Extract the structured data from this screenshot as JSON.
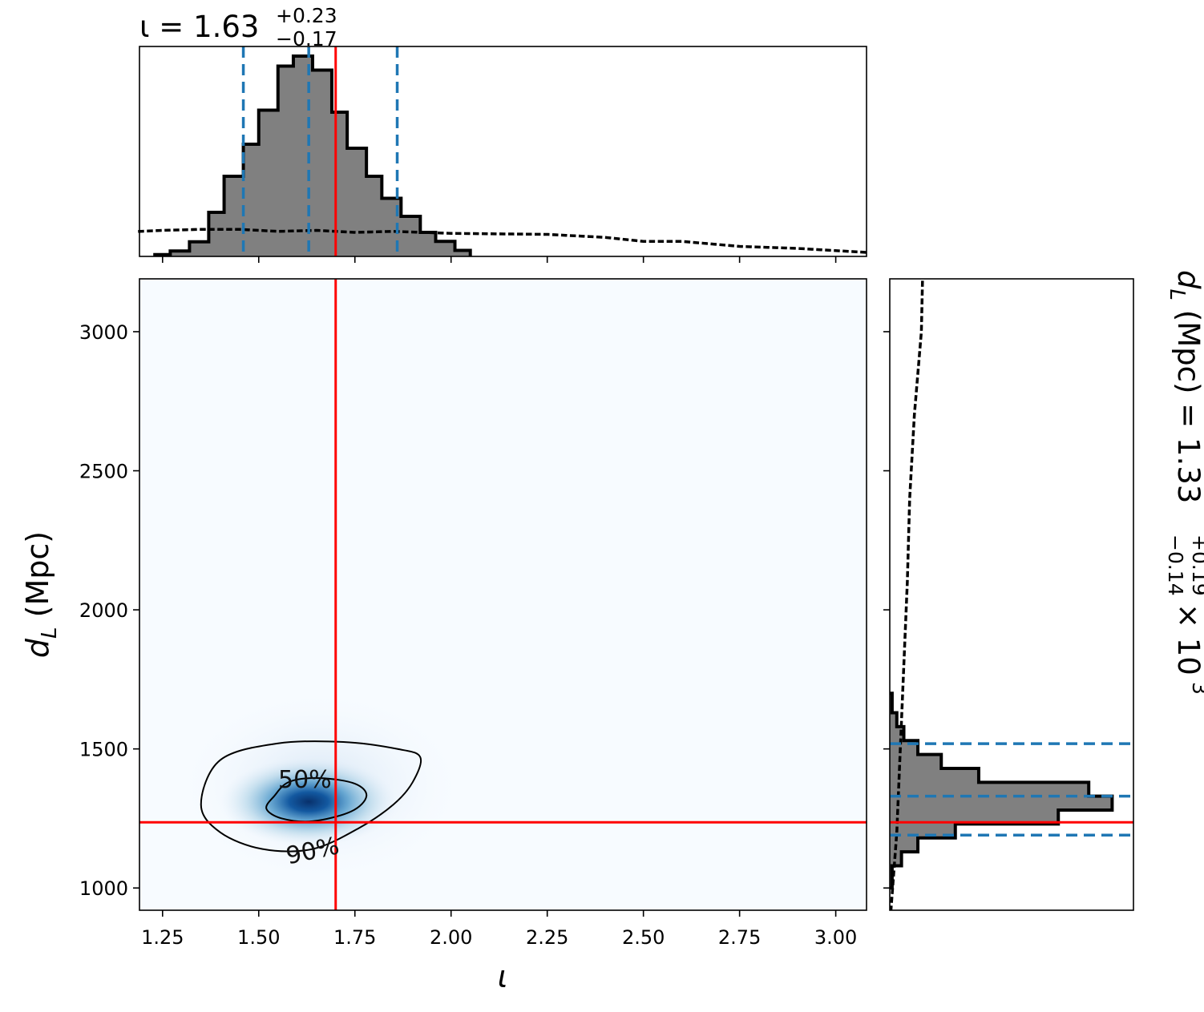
{
  "chart_data": {
    "type": "corner",
    "parameters": [
      "ι",
      "d_L (Mpc)"
    ],
    "title_top": {
      "param": "ι",
      "median": "1.63",
      "plus": "+0.23",
      "minus": "−0.17"
    },
    "title_right": {
      "param": "d_L (Mpc)",
      "median": "1.33",
      "plus": "+0.19",
      "minus": "−0.14",
      "exponent": "3",
      "multiplier": "× 10"
    },
    "xlabel": "ι",
    "ylabel": "d_L (Mpc)",
    "xlim": [
      1.19,
      3.08
    ],
    "ylim": [
      920,
      3190
    ],
    "x_ticks": [
      "1.25",
      "1.50",
      "1.75",
      "2.00",
      "2.25",
      "2.50",
      "2.75",
      "3.00"
    ],
    "y_ticks": [
      "1000",
      "1500",
      "2000",
      "2500",
      "3000"
    ],
    "injected_values": {
      "iota": 1.7,
      "dL": 1236
    },
    "quantiles": {
      "iota": [
        1.46,
        1.63,
        1.86
      ],
      "dL": [
        1190,
        1330,
        1519
      ]
    },
    "contour_labels": [
      "50%",
      "90%"
    ],
    "colors": {
      "posterior_fill": "#808080",
      "edge": "#000000",
      "quantile": "#1f77b4",
      "injection": "#ff0000",
      "density": "Blues"
    },
    "iota_histogram": {
      "bin_edges": [
        1.23,
        1.27,
        1.32,
        1.37,
        1.41,
        1.46,
        1.5,
        1.55,
        1.59,
        1.64,
        1.69,
        1.73,
        1.78,
        1.82,
        1.87,
        1.92,
        1.96,
        2.01,
        2.05
      ],
      "counts": [
        0.009,
        0.027,
        0.073,
        0.22,
        0.4,
        0.56,
        0.73,
        0.95,
        1.0,
        0.93,
        0.72,
        0.54,
        0.4,
        0.29,
        0.2,
        0.12,
        0.075,
        0.03
      ]
    },
    "iota_prior": {
      "x": [
        1.19,
        1.25,
        1.35,
        1.45,
        1.55,
        1.65,
        1.75,
        1.85,
        2.0,
        2.25,
        2.4,
        2.5,
        2.6,
        2.75,
        2.9,
        3.08
      ],
      "density": [
        0.125,
        0.13,
        0.135,
        0.135,
        0.125,
        0.13,
        0.12,
        0.125,
        0.115,
        0.11,
        0.095,
        0.075,
        0.075,
        0.05,
        0.04,
        0.02
      ]
    },
    "dL_histogram": {
      "bin_edges": [
        1000,
        1080,
        1130,
        1180,
        1230,
        1280,
        1330,
        1380,
        1430,
        1480,
        1530,
        1580,
        1630,
        1700
      ],
      "counts": [
        0.01,
        0.05,
        0.12,
        0.28,
        0.72,
        0.95,
        0.85,
        0.38,
        0.22,
        0.12,
        0.06,
        0.03,
        0.01
      ]
    },
    "dL_prior": {
      "y": [
        920,
        1200,
        1500,
        1800,
        2100,
        2400,
        2700,
        3000,
        3190
      ],
      "density": [
        0.005,
        0.03,
        0.045,
        0.06,
        0.075,
        0.085,
        0.105,
        0.135,
        0.14
      ]
    },
    "density_2d": {
      "center": [
        1.63,
        1310
      ],
      "contour_50": [
        [
          1.54,
          1330
        ],
        [
          1.58,
          1382
        ],
        [
          1.66,
          1395
        ],
        [
          1.75,
          1375
        ],
        [
          1.78,
          1330
        ],
        [
          1.74,
          1275
        ],
        [
          1.64,
          1240
        ],
        [
          1.56,
          1250
        ],
        [
          1.52,
          1285
        ]
      ],
      "contour_90": [
        [
          1.35,
          1300
        ],
        [
          1.4,
          1460
        ],
        [
          1.55,
          1520
        ],
        [
          1.72,
          1525
        ],
        [
          1.86,
          1500
        ],
        [
          1.92,
          1470
        ],
        [
          1.9,
          1380
        ],
        [
          1.85,
          1300
        ],
        [
          1.76,
          1215
        ],
        [
          1.64,
          1140
        ],
        [
          1.51,
          1140
        ],
        [
          1.4,
          1200
        ]
      ]
    }
  }
}
